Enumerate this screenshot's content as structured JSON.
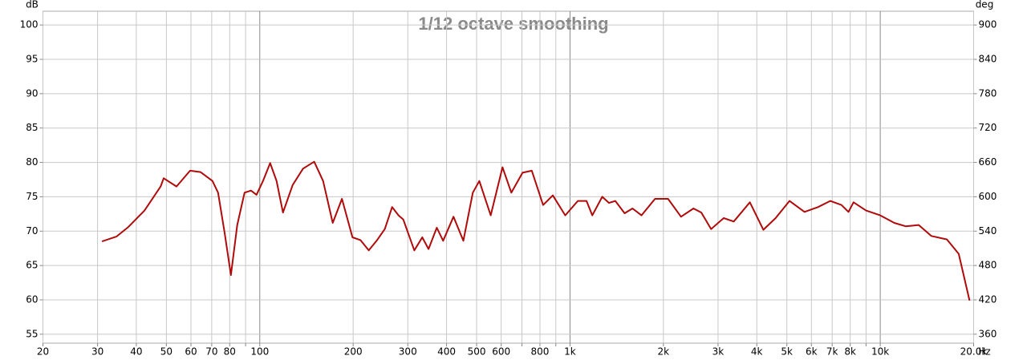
{
  "chart_data": {
    "type": "line",
    "title": "1/12 octave smoothing",
    "ylabel": "dB",
    "y2label": "deg",
    "xlabel": "Hz",
    "xscale": "log",
    "grid": true,
    "xlim": [
      20,
      20000
    ],
    "ylim": [
      53.7,
      102
    ],
    "y2lim": [
      344.4,
      924
    ],
    "xticks": [
      20,
      30,
      40,
      50,
      60,
      70,
      80,
      {
        "value": 90,
        "label": null
      },
      100,
      200,
      300,
      400,
      500,
      600,
      {
        "value": 700,
        "label": null
      },
      800,
      {
        "value": 900,
        "label": null
      },
      {
        "value": 1000,
        "label": "1k"
      },
      {
        "value": 2000,
        "label": "2k"
      },
      {
        "value": 3000,
        "label": "3k"
      },
      {
        "value": 4000,
        "label": "4k"
      },
      {
        "value": 5000,
        "label": "5k"
      },
      {
        "value": 6000,
        "label": "6k"
      },
      {
        "value": 7000,
        "label": "7k"
      },
      {
        "value": 8000,
        "label": "8k"
      },
      {
        "value": 9000,
        "label": null
      },
      {
        "value": 10000,
        "label": "10k"
      },
      {
        "value": 20000,
        "label": "20.0k"
      }
    ],
    "yticks": [
      55,
      60,
      65,
      70,
      75,
      80,
      85,
      90,
      95,
      100
    ],
    "y2ticks": [
      360,
      420,
      480,
      540,
      600,
      660,
      720,
      780,
      840,
      900
    ],
    "x": [
      31,
      34.5,
      37.7,
      42.5,
      47.9,
      49,
      53.9,
      59.6,
      64.4,
      70.4,
      73.4,
      77,
      80.7,
      84.6,
      89.3,
      93.7,
      97.6,
      102.4,
      108,
      113.3,
      118.8,
      127.6,
      137.9,
      149.8,
      160,
      171.9,
      184,
      199,
      211,
      224.5,
      238,
      253,
      267,
      280,
      290,
      315,
      334,
      350,
      372,
      390,
      421,
      453,
      486,
      510,
      555,
      606,
      647,
      703,
      753,
      819,
      880,
      965,
      1060,
      1130,
      1180,
      1270,
      1335,
      1400,
      1500,
      1590,
      1700,
      1880,
      2070,
      2280,
      2500,
      2650,
      2850,
      3130,
      3370,
      3800,
      4200,
      4600,
      5100,
      5700,
      6300,
      6900,
      7500,
      7900,
      8200,
      9000,
      10000,
      11100,
      12100,
      13300,
      14600,
      16400,
      17900,
      19400
    ],
    "series": [
      {
        "color": "#b00a0a",
        "values": [
          68.5,
          69.2,
          70.6,
          73.0,
          76.5,
          77.7,
          76.5,
          78.8,
          78.6,
          77.3,
          75.6,
          69.8,
          63.6,
          70.9,
          75.6,
          75.9,
          75.3,
          77.3,
          79.9,
          77.3,
          72.7,
          76.7,
          79.1,
          80.1,
          77.3,
          71.2,
          74.7,
          69.1,
          68.7,
          67.2,
          68.6,
          70.3,
          73.5,
          72.3,
          71.7,
          67.2,
          69.1,
          67.4,
          70.5,
          68.6,
          72.1,
          68.6,
          75.6,
          77.3,
          72.3,
          79.3,
          75.6,
          78.5,
          78.8,
          73.8,
          75.2,
          72.3,
          74.4,
          74.4,
          72.3,
          75.0,
          74.1,
          74.4,
          72.6,
          73.3,
          72.3,
          74.7,
          74.7,
          72.1,
          73.3,
          72.7,
          70.3,
          71.9,
          71.4,
          74.2,
          70.2,
          71.9,
          74.4,
          72.8,
          73.5,
          74.4,
          73.8,
          72.8,
          74.2,
          73.0,
          72.3,
          71.2,
          70.7,
          70.9,
          69.3,
          68.8,
          66.7,
          59.9
        ]
      }
    ]
  }
}
